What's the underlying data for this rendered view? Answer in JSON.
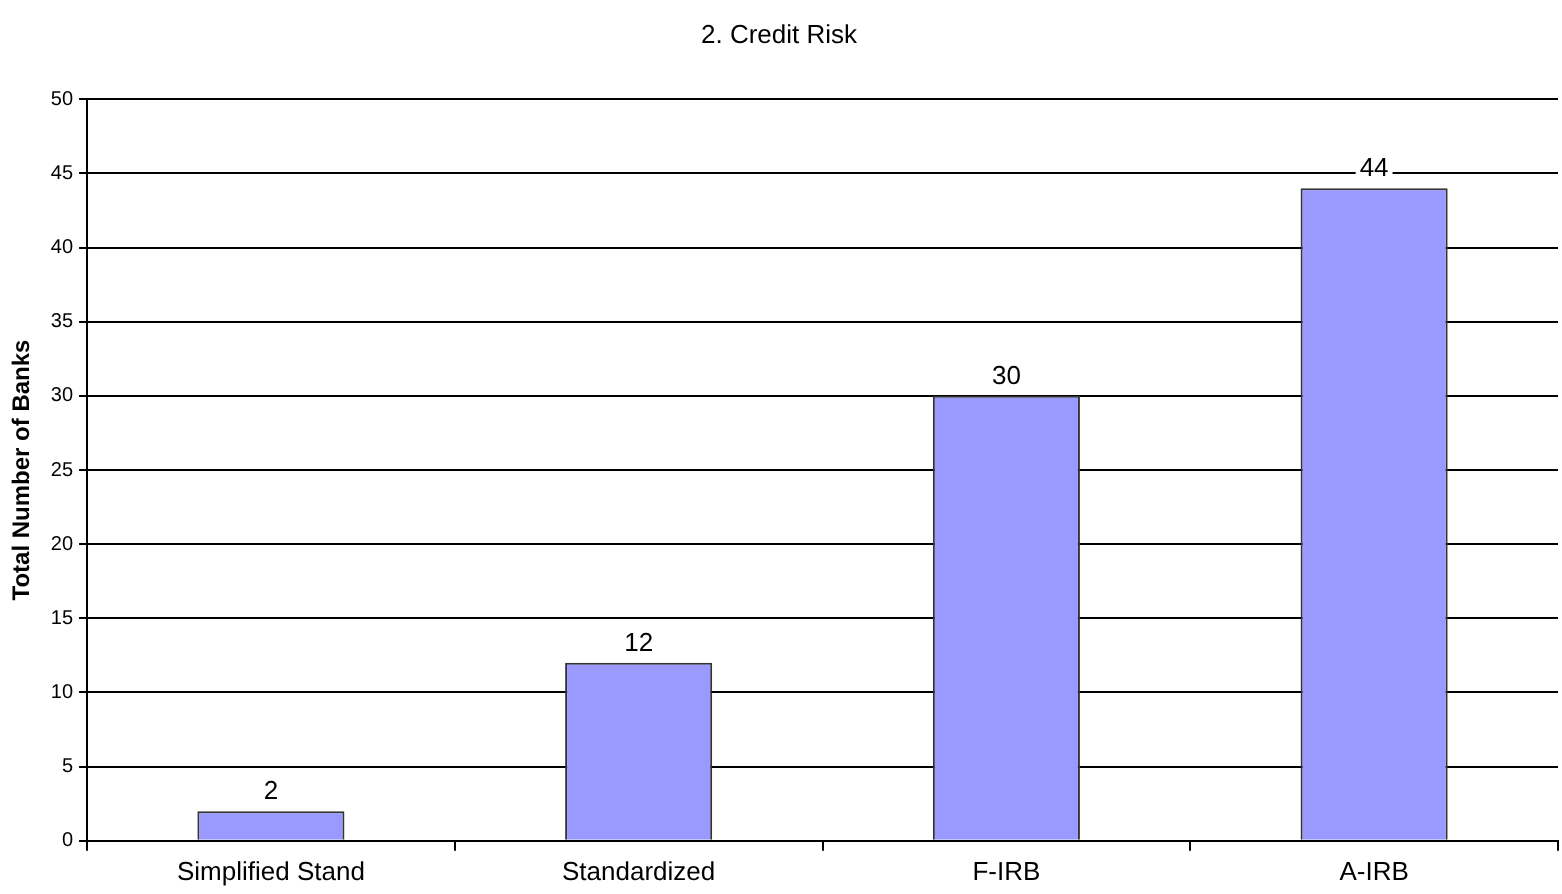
{
  "chart_data": {
    "type": "bar",
    "title": "2. Credit Risk",
    "ylabel": "Total Number of Banks",
    "categories": [
      "Simplified Stand",
      "Standardized",
      "F-IRB",
      "A-IRB"
    ],
    "values": [
      2,
      12,
      30,
      44
    ],
    "color": "#9999ff",
    "ylim": [
      0,
      50
    ],
    "yticks": [
      0,
      5,
      10,
      15,
      20,
      25,
      30,
      35,
      40,
      45,
      50
    ],
    "grid": "y",
    "data_labels": true,
    "legend": false
  }
}
